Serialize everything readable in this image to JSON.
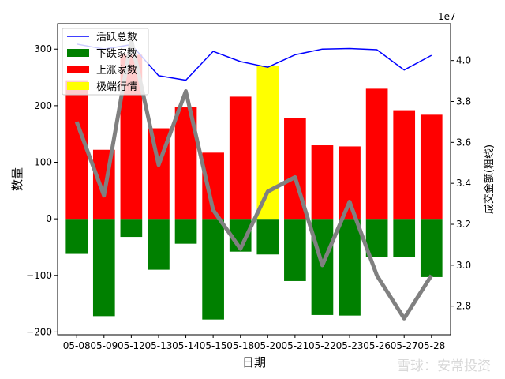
{
  "chart_data": {
    "type": "bar",
    "title": "",
    "xlabel": "日期",
    "ylabel": "数量",
    "y2label": "成交金额(粗线)",
    "y2_multiplier": "1e7",
    "categories": [
      "05-08",
      "05-09",
      "05-12",
      "05-13",
      "05-14",
      "05-15",
      "05-18",
      "05-20",
      "05-21",
      "05-22",
      "05-23",
      "05-26",
      "05-27",
      "05-28"
    ],
    "ylim": [
      -205,
      345
    ],
    "yticks": [
      -200,
      -100,
      0,
      100,
      200,
      300
    ],
    "y2lim": [
      2.66,
      4.18
    ],
    "y2ticks": [
      2.8,
      3.0,
      3.2,
      3.4,
      3.6,
      3.8,
      4.0
    ],
    "grid": false,
    "legend_position": "top-left",
    "series": [
      {
        "name": "活跃总数",
        "type": "line",
        "axis": "left",
        "color": "#0000ff",
        "values": [
          309,
          300,
          308,
          253,
          245,
          296,
          278,
          268,
          290,
          300,
          301,
          299,
          263,
          289
        ]
      },
      {
        "name": "下跌家数",
        "type": "bar",
        "axis": "left",
        "color": "#008000",
        "values": [
          -62,
          -172,
          -32,
          -90,
          -44,
          -178,
          -58,
          -63,
          -110,
          -170,
          -171,
          -67,
          -68,
          -103
        ]
      },
      {
        "name": "上涨家数",
        "type": "bar",
        "axis": "left",
        "color": "#ff0000",
        "values": [
          245,
          122,
          290,
          160,
          197,
          117,
          216,
          0,
          178,
          130,
          128,
          230,
          192,
          184
        ]
      },
      {
        "name": "极端行情",
        "type": "bar",
        "axis": "left",
        "color": "#ffff00",
        "values": [
          0,
          0,
          0,
          0,
          0,
          0,
          0,
          270,
          0,
          0,
          0,
          0,
          0,
          0
        ]
      },
      {
        "name": "",
        "type": "line",
        "axis": "right",
        "color": "#808080",
        "values": [
          3.7,
          3.34,
          4.1,
          3.49,
          3.85,
          3.27,
          3.08,
          3.36,
          3.43,
          3.0,
          3.31,
          2.95,
          2.74,
          2.95
        ]
      }
    ]
  },
  "watermark": "雪球：安常投资"
}
